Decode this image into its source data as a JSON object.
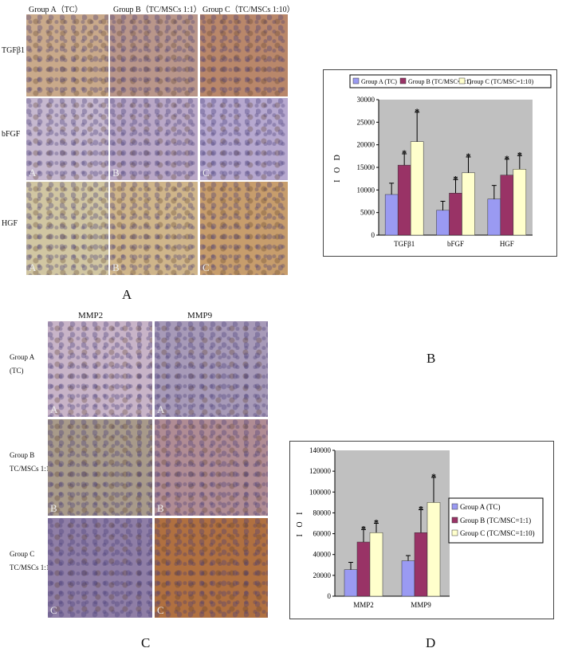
{
  "panels": {
    "a": "A",
    "b": "B",
    "c": "C",
    "d": "D"
  },
  "top_grid": {
    "columns": [
      "Group A（TC）",
      "Group B（TC/MSCs 1:1）",
      "Group C（TC/MSCs 1:10）"
    ],
    "rows": [
      "TGFβ1",
      "bFGF",
      "HGF"
    ],
    "corner_letters": [
      "A",
      "B",
      "C"
    ],
    "colors": {
      "TGFβ1": [
        "#c9a98a",
        "#b9968a",
        "#b9876a"
      ],
      "bFGF": [
        "#c6b8cf",
        "#b9a7c6",
        "#b6a8cf"
      ],
      "HGF": [
        "#d1c6a2",
        "#cfb58a",
        "#c79d6c"
      ]
    }
  },
  "bottom_grid": {
    "columns": [
      "MMP2",
      "MMP9"
    ],
    "rows": [
      {
        "label1": "Group A",
        "label2": "(TC)"
      },
      {
        "label1": "Group B",
        "label2": "TC/MSCs 1:1"
      },
      {
        "label1": "Group C",
        "label2": "TC/MSCs 1:10"
      }
    ],
    "corner_letters": [
      "A",
      "B",
      "C"
    ],
    "colors": [
      [
        "#c8b4c8",
        "#a79ab8"
      ],
      [
        "#a89a8a",
        "#b08c94"
      ],
      [
        "#8f7ea6",
        "#b07040"
      ]
    ]
  },
  "chart_data": [
    {
      "type": "bar",
      "title": "",
      "xlabel": "",
      "ylabel": "I O D",
      "categories": [
        "TGFβ1",
        "bFGF",
        "HGF"
      ],
      "ylim": [
        0,
        30000
      ],
      "yticks": [
        "30000",
        "25000",
        "20000",
        "15000",
        "10000",
        "5000",
        "0"
      ],
      "legend_position": "top",
      "series": [
        {
          "name": "Group A (TC)",
          "values": [
            9000,
            5500,
            8000
          ],
          "errors": [
            2500,
            2000,
            3000
          ],
          "color": "#9a9af2"
        },
        {
          "name": "Group B (TC/MSC=1:1)",
          "values": [
            15500,
            9300,
            13300
          ],
          "errors": [
            2500,
            3000,
            3500
          ],
          "color": "#993366"
        },
        {
          "name": "Group C (TC/MSC=1:10)",
          "values": [
            20700,
            13800,
            14600
          ],
          "errors": [
            6500,
            3500,
            3000
          ],
          "color": "#ffffcc"
        }
      ],
      "stars": [
        [
          false,
          true,
          true
        ],
        [
          false,
          true,
          true
        ],
        [
          false,
          true,
          true
        ]
      ],
      "background": "#c0c0c0"
    },
    {
      "type": "bar",
      "title": "",
      "xlabel": "",
      "ylabel": "I O I",
      "categories": [
        "MMP2",
        "MMP9"
      ],
      "ylim": [
        0,
        140000
      ],
      "yticks": [
        "140000",
        "120000",
        "100000",
        "80000",
        "60000",
        "40000",
        "20000",
        "0"
      ],
      "legend_position": "right",
      "series": [
        {
          "name": "Group A (TC)",
          "values": [
            25500,
            34000
          ],
          "errors": [
            7000,
            5000
          ],
          "color": "#9a9af2"
        },
        {
          "name": "Group B (TC/MSC=1:1)",
          "values": [
            52000,
            61000
          ],
          "errors": [
            12000,
            22000
          ],
          "color": "#993366"
        },
        {
          "name": "Group C (TC/MSC=1:10)",
          "values": [
            61000,
            90000
          ],
          "errors": [
            9000,
            24000
          ],
          "color": "#ffffcc"
        }
      ],
      "stars": [
        [
          false,
          true,
          true
        ],
        [
          false,
          true,
          true
        ]
      ],
      "background": "#c0c0c0"
    }
  ]
}
